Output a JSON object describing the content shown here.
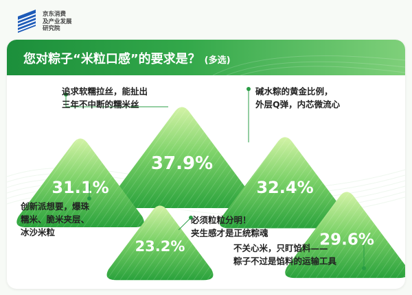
{
  "header": {
    "org_name_lines": [
      "京东消费",
      "及产业发展",
      "研究院"
    ]
  },
  "colors": {
    "accent": "#2a9c45",
    "tri_top": "#c9ee9a",
    "tri_bottom": "#2fa63e",
    "text": "#222222"
  },
  "chart_data": {
    "type": "pie",
    "title": "您对粽子“米粒口感”的要求是？",
    "subtitle": "(多选)",
    "unit": "%",
    "items": [
      {
        "label_lines": [
          "追求软糯拉丝，能扯出",
          "三年不中断的糯米丝"
        ],
        "value": 37.9,
        "value_label": "37.9%"
      },
      {
        "label_lines": [
          "碱水粽的黄金比例，",
          "外层Q弹，内芯微流心"
        ],
        "value": 32.4,
        "value_label": "32.4%"
      },
      {
        "label_lines": [
          "创新派想要，爆珠",
          "糯米、脆米夹层、",
          "冰沙米粒"
        ],
        "value": 31.1,
        "value_label": "31.1%"
      },
      {
        "label_lines": [
          "不关心米，只盯馅料——",
          "粽子不过是馅料的运输工具"
        ],
        "value": 29.6,
        "value_label": "29.6%"
      },
      {
        "label_lines": [
          "必须粒粒分明！",
          "夹生感才是正统粽魂"
        ],
        "value": 23.2,
        "value_label": "23.2%"
      }
    ]
  }
}
